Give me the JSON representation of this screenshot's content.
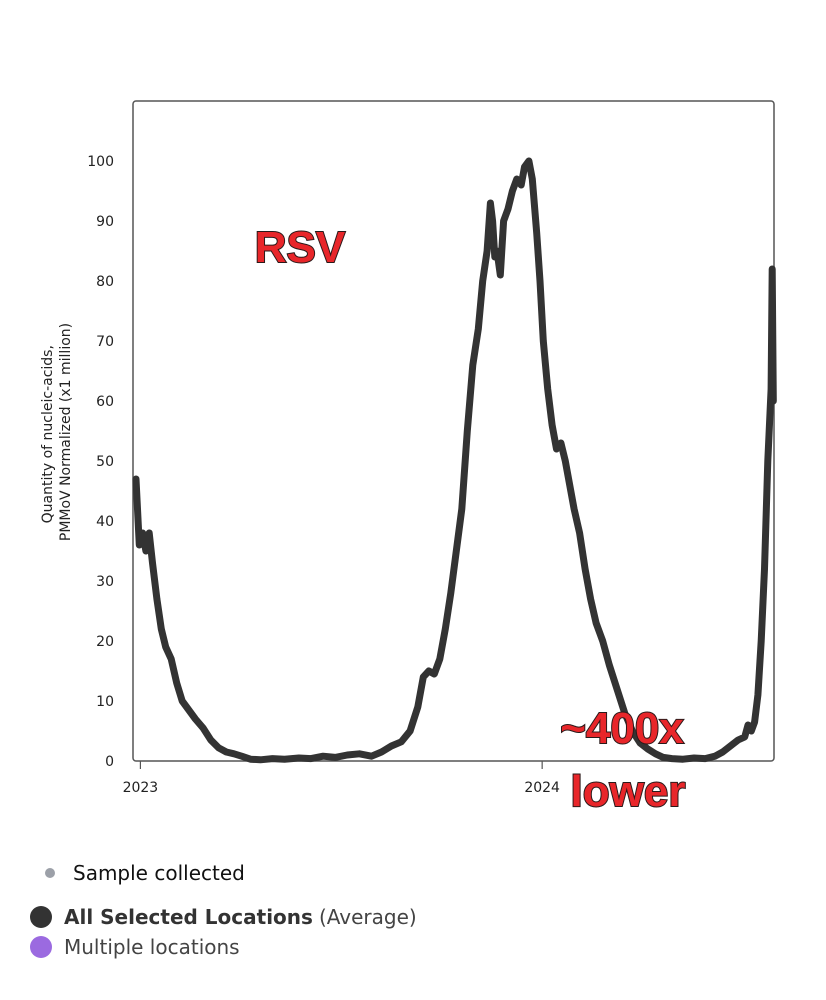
{
  "chart_data": {
    "type": "line",
    "title": "",
    "xlabel": "",
    "ylabel_lines": [
      "Quantity of nucleic-acids,",
      "PMMoV Normalized (x1 million)"
    ],
    "ylim": [
      0,
      110
    ],
    "yticks": [
      0,
      10,
      20,
      30,
      40,
      50,
      60,
      70,
      80,
      90,
      100
    ],
    "xticks": [
      {
        "label": "2023",
        "value": "2023-01-01"
      },
      {
        "label": "2024",
        "value": "2024-01-01"
      }
    ],
    "xlim": [
      "2022-12-28",
      "2024-07-26"
    ],
    "grid": false,
    "series": [
      {
        "name": "All Selected Locations",
        "color": "#333333",
        "points": [
          [
            "2022-12-28",
            47
          ],
          [
            "2022-12-31",
            36
          ],
          [
            "2023-01-03",
            38
          ],
          [
            "2023-01-06",
            35
          ],
          [
            "2023-01-09",
            38
          ],
          [
            "2023-01-12",
            33
          ],
          [
            "2023-01-16",
            27
          ],
          [
            "2023-01-20",
            22
          ],
          [
            "2023-01-24",
            19
          ],
          [
            "2023-01-29",
            17
          ],
          [
            "2023-02-03",
            13
          ],
          [
            "2023-02-08",
            10
          ],
          [
            "2023-02-14",
            8.5
          ],
          [
            "2023-02-20",
            7
          ],
          [
            "2023-02-27",
            5.5
          ],
          [
            "2023-03-06",
            3.5
          ],
          [
            "2023-03-13",
            2.2
          ],
          [
            "2023-03-20",
            1.5
          ],
          [
            "2023-03-27",
            1.2
          ],
          [
            "2023-04-03",
            0.8
          ],
          [
            "2023-04-11",
            0.3
          ],
          [
            "2023-04-20",
            0.2
          ],
          [
            "2023-05-01",
            0.4
          ],
          [
            "2023-05-12",
            0.3
          ],
          [
            "2023-05-25",
            0.5
          ],
          [
            "2023-06-05",
            0.4
          ],
          [
            "2023-06-16",
            0.8
          ],
          [
            "2023-06-27",
            0.6
          ],
          [
            "2023-07-08",
            1.0
          ],
          [
            "2023-07-19",
            1.2
          ],
          [
            "2023-07-30",
            0.8
          ],
          [
            "2023-08-08",
            1.5
          ],
          [
            "2023-08-17",
            2.5
          ],
          [
            "2023-08-26",
            3.2
          ],
          [
            "2023-09-03",
            5.0
          ],
          [
            "2023-09-10",
            9.0
          ],
          [
            "2023-09-15",
            14.0
          ],
          [
            "2023-09-20",
            15.0
          ],
          [
            "2023-09-25",
            14.5
          ],
          [
            "2023-09-30",
            17.0
          ],
          [
            "2023-10-05",
            22.0
          ],
          [
            "2023-10-10",
            28.0
          ],
          [
            "2023-10-15",
            35.0
          ],
          [
            "2023-10-20",
            42.0
          ],
          [
            "2023-10-25",
            55.0
          ],
          [
            "2023-10-30",
            66.0
          ],
          [
            "2023-11-04",
            72.0
          ],
          [
            "2023-11-08",
            80.0
          ],
          [
            "2023-11-12",
            85.0
          ],
          [
            "2023-11-15",
            93.0
          ],
          [
            "2023-11-17",
            90.0
          ],
          [
            "2023-11-19",
            84.0
          ],
          [
            "2023-11-21",
            85.0
          ],
          [
            "2023-11-24",
            81.0
          ],
          [
            "2023-11-27",
            90.0
          ],
          [
            "2023-12-01",
            92.0
          ],
          [
            "2023-12-05",
            95.0
          ],
          [
            "2023-12-09",
            97.0
          ],
          [
            "2023-12-13",
            96.0
          ],
          [
            "2023-12-16",
            99.0
          ],
          [
            "2023-12-20",
            100.0
          ],
          [
            "2023-12-23",
            97.0
          ],
          [
            "2023-12-27",
            88.0
          ],
          [
            "2023-12-30",
            80.0
          ],
          [
            "2024-01-02",
            70.0
          ],
          [
            "2024-01-06",
            62.0
          ],
          [
            "2024-01-10",
            56.0
          ],
          [
            "2024-01-14",
            52.0
          ],
          [
            "2024-01-18",
            53.0
          ],
          [
            "2024-01-22",
            50.0
          ],
          [
            "2024-01-26",
            46.0
          ],
          [
            "2024-01-30",
            42.0
          ],
          [
            "2024-02-04",
            38.0
          ],
          [
            "2024-02-09",
            32.0
          ],
          [
            "2024-02-14",
            27.0
          ],
          [
            "2024-02-19",
            23.0
          ],
          [
            "2024-02-25",
            20.0
          ],
          [
            "2024-03-02",
            16.0
          ],
          [
            "2024-03-09",
            12.0
          ],
          [
            "2024-03-16",
            8.0
          ],
          [
            "2024-03-23",
            5.0
          ],
          [
            "2024-03-30",
            3.0
          ],
          [
            "2024-04-06",
            2.0
          ],
          [
            "2024-04-13",
            1.2
          ],
          [
            "2024-04-20",
            0.6
          ],
          [
            "2024-04-28",
            0.4
          ],
          [
            "2024-05-08",
            0.3
          ],
          [
            "2024-05-18",
            0.5
          ],
          [
            "2024-05-28",
            0.4
          ],
          [
            "2024-06-06",
            0.8
          ],
          [
            "2024-06-13",
            1.5
          ],
          [
            "2024-06-20",
            2.5
          ],
          [
            "2024-06-27",
            3.5
          ],
          [
            "2024-07-03",
            4.0
          ],
          [
            "2024-07-06",
            6.0
          ],
          [
            "2024-07-09",
            5.0
          ],
          [
            "2024-07-12",
            6.5
          ],
          [
            "2024-07-15",
            11.0
          ],
          [
            "2024-07-18",
            20.0
          ],
          [
            "2024-07-21",
            32.0
          ],
          [
            "2024-07-24",
            50.0
          ],
          [
            "2024-07-26",
            58.0
          ],
          [
            "2024-07-27",
            62.0
          ],
          [
            "2024-07-28",
            82.0
          ],
          [
            "2024-07-29",
            60.0
          ]
        ]
      }
    ],
    "annotations": [
      {
        "text": "RSV",
        "at": [
          "2023-04-28",
          86
        ]
      },
      {
        "text": "~400x",
        "at": [
          "2024-05-22",
          5
        ]
      },
      {
        "text": "lower",
        "at": [
          "2024-05-22",
          -5.5
        ]
      }
    ]
  },
  "legend": {
    "sample_collected": "Sample collected",
    "sample_dot_color": "#9ca0a8",
    "average_label_bold": "All Selected Locations",
    "average_label_suffix": "(Average)",
    "average_dot_color": "#333333",
    "multiple_label": "Multiple locations",
    "multiple_dot_color": "#9b6ae0"
  }
}
